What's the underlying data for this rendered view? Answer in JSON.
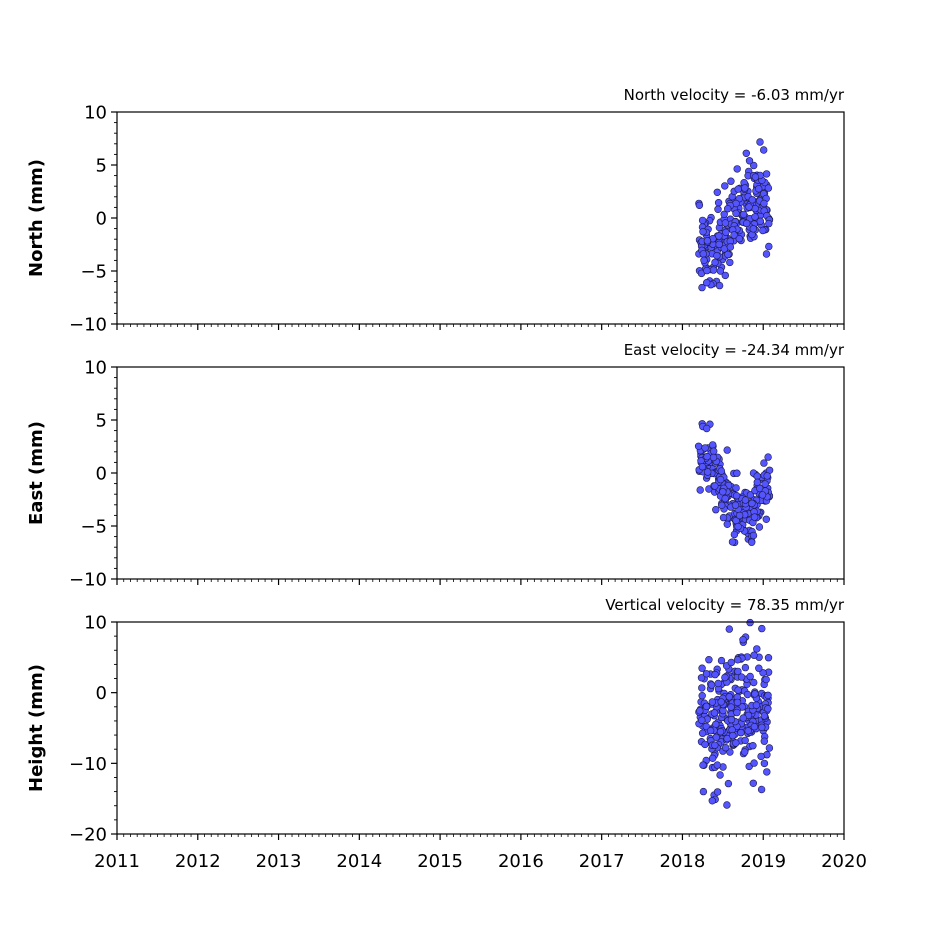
{
  "chart_data": [
    {
      "type": "scatter",
      "title": "North velocity = -6.03 mm/yr",
      "ylabel": "North (mm)",
      "xlabel": "",
      "xlim": [
        2011,
        2020
      ],
      "ylim": [
        -10,
        10
      ],
      "yticks": [
        10,
        5,
        0,
        -5,
        -10
      ],
      "ytick_labels": [
        "10",
        "5",
        "0",
        "−5",
        "−10"
      ],
      "xticks": [
        2011,
        2012,
        2013,
        2014,
        2015,
        2016,
        2017,
        2018,
        2019,
        2020
      ],
      "xtick_labels": [],
      "marker_color": "#5555ff",
      "series": [
        {
          "x_range": [
            2018.2,
            2019.08
          ],
          "trend": [
            [
              2018.2,
              -2.5
            ],
            [
              2018.45,
              -2.8
            ],
            [
              2018.6,
              -1.0
            ],
            [
              2018.8,
              1.5
            ],
            [
              2019.08,
              1.0
            ]
          ],
          "scatter": 2.0,
          "count": 240,
          "extrema": [
            [
              2018.3,
              -6.1
            ],
            [
              2018.79,
              6.1
            ],
            [
              2018.83,
              5.4
            ],
            [
              2019.04,
              -3.4
            ],
            [
              2018.21,
              1.2
            ],
            [
              2018.47,
              -5.0
            ]
          ]
        }
      ]
    },
    {
      "type": "scatter",
      "title": "East velocity = -24.34 mm/yr",
      "ylabel": "East (mm)",
      "xlabel": "",
      "xlim": [
        2011,
        2020
      ],
      "ylim": [
        -10,
        10
      ],
      "yticks": [
        10,
        5,
        0,
        -5,
        -10
      ],
      "ytick_labels": [
        "10",
        "5",
        "0",
        "−5",
        "−10"
      ],
      "xticks": [
        2011,
        2012,
        2013,
        2014,
        2015,
        2016,
        2017,
        2018,
        2019,
        2020
      ],
      "xtick_labels": [],
      "marker_color": "#5555ff",
      "series": [
        {
          "x_range": [
            2018.2,
            2019.08
          ],
          "trend": [
            [
              2018.2,
              1.2
            ],
            [
              2018.35,
              1.0
            ],
            [
              2018.5,
              -1.5
            ],
            [
              2018.7,
              -4.0
            ],
            [
              2018.85,
              -3.5
            ],
            [
              2019.08,
              -1.5
            ]
          ],
          "scatter": 1.3,
          "count": 240,
          "extrema": [
            [
              2018.34,
              4.6
            ],
            [
              2018.3,
              4.2
            ],
            [
              2018.62,
              -6.5
            ],
            [
              2018.88,
              -5.9
            ],
            [
              2019.06,
              1.5
            ],
            [
              2018.22,
              -1.6
            ]
          ]
        }
      ]
    },
    {
      "type": "scatter",
      "title": "Vertical velocity = 78.35 mm/yr",
      "ylabel": "Height (mm)",
      "xlabel": "",
      "xlim": [
        2011,
        2020
      ],
      "ylim": [
        -20,
        10
      ],
      "yticks": [
        10,
        0,
        -10,
        -20
      ],
      "ytick_labels": [
        "10",
        "0",
        "−10",
        "−20"
      ],
      "xticks": [
        2011,
        2012,
        2013,
        2014,
        2015,
        2016,
        2017,
        2018,
        2019,
        2020
      ],
      "xtick_labels": [
        "2011",
        "2012",
        "2013",
        "2014",
        "2015",
        "2016",
        "2017",
        "2018",
        "2019",
        "2020"
      ],
      "marker_color": "#5555ff",
      "series": [
        {
          "x_range": [
            2018.2,
            2019.08
          ],
          "trend": [
            [
              2018.2,
              -4.0
            ],
            [
              2018.45,
              -5.0
            ],
            [
              2018.7,
              -1.5
            ],
            [
              2018.85,
              -2.0
            ],
            [
              2019.08,
              -3.0
            ]
          ],
          "scatter": 4.0,
          "count": 300,
          "extrema": [
            [
              2018.55,
              -15.9
            ],
            [
              2018.58,
              9.0
            ],
            [
              2018.26,
              -14.0
            ],
            [
              2018.98,
              -13.7
            ],
            [
              2018.75,
              7.5
            ],
            [
              2018.92,
              6.2
            ]
          ]
        }
      ]
    }
  ]
}
